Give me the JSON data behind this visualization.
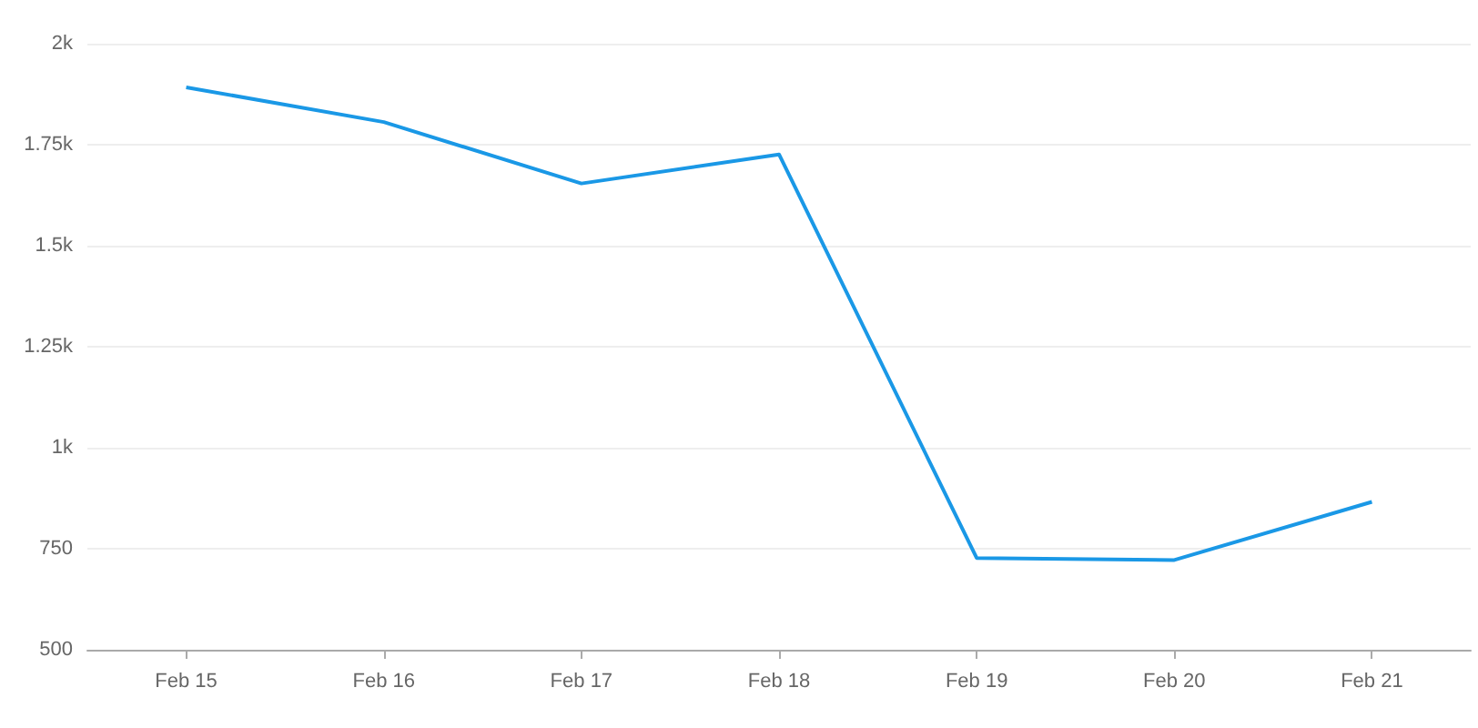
{
  "chart_data": {
    "type": "line",
    "categories": [
      "Feb 15",
      "Feb 16",
      "Feb 17",
      "Feb 18",
      "Feb 19",
      "Feb 20",
      "Feb 21"
    ],
    "series": [
      {
        "color": "#1a98e6",
        "values": [
          1892,
          1806,
          1654,
          1726,
          727,
          722,
          866
        ]
      }
    ],
    "ylim": [
      500,
      2000
    ],
    "yticks": [
      500,
      750,
      {
        "value": 1000,
        "label": "1k"
      },
      {
        "value": 1250,
        "label": "1.25k"
      },
      {
        "value": 1500,
        "label": "1.5k"
      },
      {
        "value": 1750,
        "label": "1.75k"
      },
      {
        "value": 2000,
        "label": "2k"
      }
    ],
    "grid": "y",
    "marker": "none",
    "line_style": "solid"
  }
}
